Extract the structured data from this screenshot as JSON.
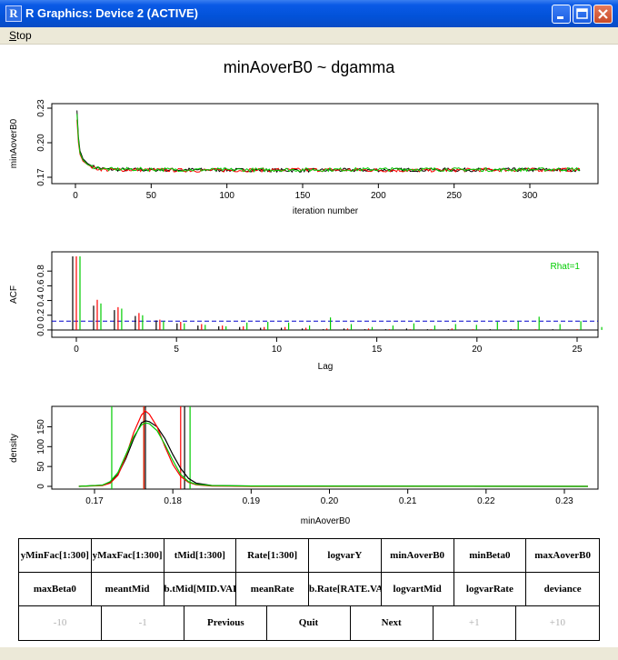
{
  "window": {
    "title": "R Graphics: Device 2 (ACTIVE)",
    "app_icon_letter": "R"
  },
  "menu": {
    "stop_label_underlined": "S",
    "stop_label_rest": "top"
  },
  "plot": {
    "main_title": "minAoverB0 ~ dgamma",
    "trace": {
      "ylabel": "minAoverB0",
      "xlabel": "iteration number",
      "xticks": [
        "0",
        "50",
        "100",
        "150",
        "200",
        "250",
        "300"
      ],
      "yticks": [
        "0.17",
        "0.20",
        "0.23"
      ]
    },
    "acf": {
      "ylabel": "ACF",
      "xlabel": "Lag",
      "xticks": [
        "0",
        "5",
        "10",
        "15",
        "20",
        "25"
      ],
      "yticks": [
        "0.0",
        "0.2",
        "0.4",
        "0.6",
        "0.8"
      ],
      "rhat_label": "Rhat=1"
    },
    "density": {
      "ylabel": "density",
      "xlabel": "minAoverB0",
      "xticks": [
        "0.17",
        "0.18",
        "0.19",
        "0.20",
        "0.21",
        "0.22",
        "0.23"
      ],
      "yticks": [
        "0",
        "50",
        "100",
        "150"
      ]
    }
  },
  "chart_data": [
    {
      "type": "line",
      "xlabel": "iteration number",
      "ylabel": "minAoverB0",
      "xlim": [
        0,
        335
      ],
      "ylim": [
        0.17,
        0.23
      ],
      "series": [
        {
          "color": "#000000",
          "x": [
            1,
            2,
            3,
            5,
            8,
            12,
            20,
            40,
            80,
            150,
            220,
            280,
            330
          ],
          "y": [
            0.228,
            0.205,
            0.193,
            0.186,
            0.182,
            0.179,
            0.177,
            0.1765,
            0.1765,
            0.176,
            0.1765,
            0.1765,
            0.1765
          ]
        },
        {
          "color": "#ff0000",
          "x": [
            1,
            2,
            3,
            5,
            8,
            12,
            20,
            40,
            80,
            150,
            220,
            280,
            330
          ],
          "y": [
            0.22,
            0.2,
            0.19,
            0.184,
            0.181,
            0.178,
            0.1765,
            0.1765,
            0.176,
            0.1765,
            0.176,
            0.1765,
            0.1765
          ]
        },
        {
          "color": "#00cc00",
          "x": [
            1,
            2,
            3,
            5,
            8,
            12,
            20,
            40,
            80,
            150,
            220,
            280,
            330
          ],
          "y": [
            0.225,
            0.203,
            0.191,
            0.185,
            0.181,
            0.179,
            0.177,
            0.177,
            0.1765,
            0.1765,
            0.177,
            0.1765,
            0.177
          ]
        }
      ]
    },
    {
      "type": "bar",
      "xlabel": "Lag",
      "ylabel": "ACF",
      "xlim": [
        0,
        25
      ],
      "ylim": [
        -0.05,
        1.0
      ],
      "threshold": 0.12,
      "series": [
        {
          "color": "#000000",
          "lags": [
            0,
            1,
            2,
            3,
            4,
            5,
            6,
            7,
            8,
            9,
            10,
            11,
            12,
            13,
            14,
            15,
            16,
            17,
            18,
            19,
            20,
            21,
            22,
            23,
            24,
            25
          ],
          "values": [
            1.0,
            0.33,
            0.27,
            0.19,
            0.13,
            0.09,
            0.06,
            0.05,
            0.04,
            0.03,
            0.03,
            0.02,
            0.01,
            0.02,
            0.01,
            0.01,
            0.02,
            0.01,
            0.01,
            0.0,
            0.01,
            0.01,
            0.0,
            0.01,
            0.0,
            0.0
          ]
        },
        {
          "color": "#ff0000",
          "lags": [
            0,
            1,
            2,
            3,
            4,
            5,
            6,
            7,
            8,
            9,
            10,
            11,
            12,
            13,
            14,
            15,
            16,
            17,
            18,
            19,
            20,
            21,
            22,
            23,
            24,
            25
          ],
          "values": [
            1.0,
            0.41,
            0.31,
            0.23,
            0.14,
            0.11,
            0.08,
            0.06,
            0.05,
            0.04,
            0.04,
            0.03,
            0.02,
            0.02,
            0.02,
            0.01,
            0.01,
            0.01,
            0.02,
            0.01,
            0.0,
            0.01,
            0.01,
            0.0,
            0.01,
            0.0
          ]
        },
        {
          "color": "#00cc00",
          "lags": [
            0,
            1,
            2,
            3,
            4,
            5,
            6,
            7,
            8,
            9,
            10,
            11,
            12,
            13,
            14,
            15,
            16,
            17,
            18,
            19,
            20,
            21,
            22,
            23,
            24,
            25
          ],
          "values": [
            1.0,
            0.36,
            0.29,
            0.2,
            0.12,
            0.09,
            0.07,
            0.05,
            0.1,
            0.11,
            0.1,
            0.06,
            0.17,
            0.08,
            0.04,
            0.06,
            0.09,
            0.06,
            0.08,
            0.07,
            0.11,
            0.12,
            0.18,
            0.08,
            0.12,
            0.04
          ]
        }
      ],
      "annotations": [
        "Rhat=1"
      ]
    },
    {
      "type": "line",
      "xlabel": "minAoverB0",
      "ylabel": "density",
      "xlim": [
        0.168,
        0.233
      ],
      "ylim": [
        0,
        190
      ],
      "series": [
        {
          "color": "#000000",
          "x": [
            0.168,
            0.171,
            0.172,
            0.173,
            0.174,
            0.175,
            0.176,
            0.1765,
            0.177,
            0.178,
            0.179,
            0.18,
            0.181,
            0.182,
            0.183,
            0.185,
            0.19,
            0.233
          ],
          "y": [
            0,
            3,
            10,
            30,
            70,
            120,
            160,
            165,
            163,
            150,
            120,
            80,
            45,
            20,
            8,
            2,
            1,
            0
          ]
        },
        {
          "color": "#ff0000",
          "x": [
            0.168,
            0.171,
            0.172,
            0.173,
            0.174,
            0.175,
            0.176,
            0.1765,
            0.177,
            0.178,
            0.179,
            0.18,
            0.181,
            0.182,
            0.183,
            0.185,
            0.19,
            0.233
          ],
          "y": [
            0,
            2,
            8,
            28,
            75,
            135,
            180,
            190,
            182,
            150,
            100,
            55,
            25,
            10,
            4,
            1,
            0,
            0
          ]
        },
        {
          "color": "#00cc00",
          "x": [
            0.168,
            0.171,
            0.172,
            0.173,
            0.174,
            0.175,
            0.176,
            0.1765,
            0.177,
            0.178,
            0.179,
            0.18,
            0.181,
            0.182,
            0.183,
            0.185,
            0.19,
            0.233
          ],
          "y": [
            0,
            3,
            12,
            35,
            80,
            125,
            155,
            160,
            158,
            140,
            105,
            65,
            30,
            12,
            5,
            2,
            1,
            0
          ]
        }
      ],
      "vlines": [
        {
          "color": "#00cc00",
          "x": [
            0.1722,
            0.1763,
            0.1822
          ]
        },
        {
          "color": "#ff0000",
          "x": [
            0.1763,
            0.181
          ]
        },
        {
          "color": "#000000",
          "x": [
            0.1765,
            0.1815
          ]
        }
      ]
    }
  ],
  "buttons": {
    "row1": [
      "yMinFac[1:300]",
      "yMaxFac[1:300]",
      "tMid[1:300]",
      "Rate[1:300]",
      "logvarY",
      "minAoverB0",
      "minBeta0",
      "maxAoverB0"
    ],
    "row2": [
      "maxBeta0",
      "meantMid",
      "b.tMid[MID.VARS]",
      "meanRate",
      "b.Rate[RATE.VARS]",
      "logvartMid",
      "logvarRate",
      "deviance"
    ],
    "row3": [
      "-10",
      "-1",
      "Previous",
      "Quit",
      "Next",
      "+1",
      "+10"
    ]
  },
  "colors": {
    "titlebar_blue": "#0252d9",
    "chain1": "#000000",
    "chain2": "#ff0000",
    "chain3": "#00cc00",
    "acf_threshold": "#0000cc"
  }
}
